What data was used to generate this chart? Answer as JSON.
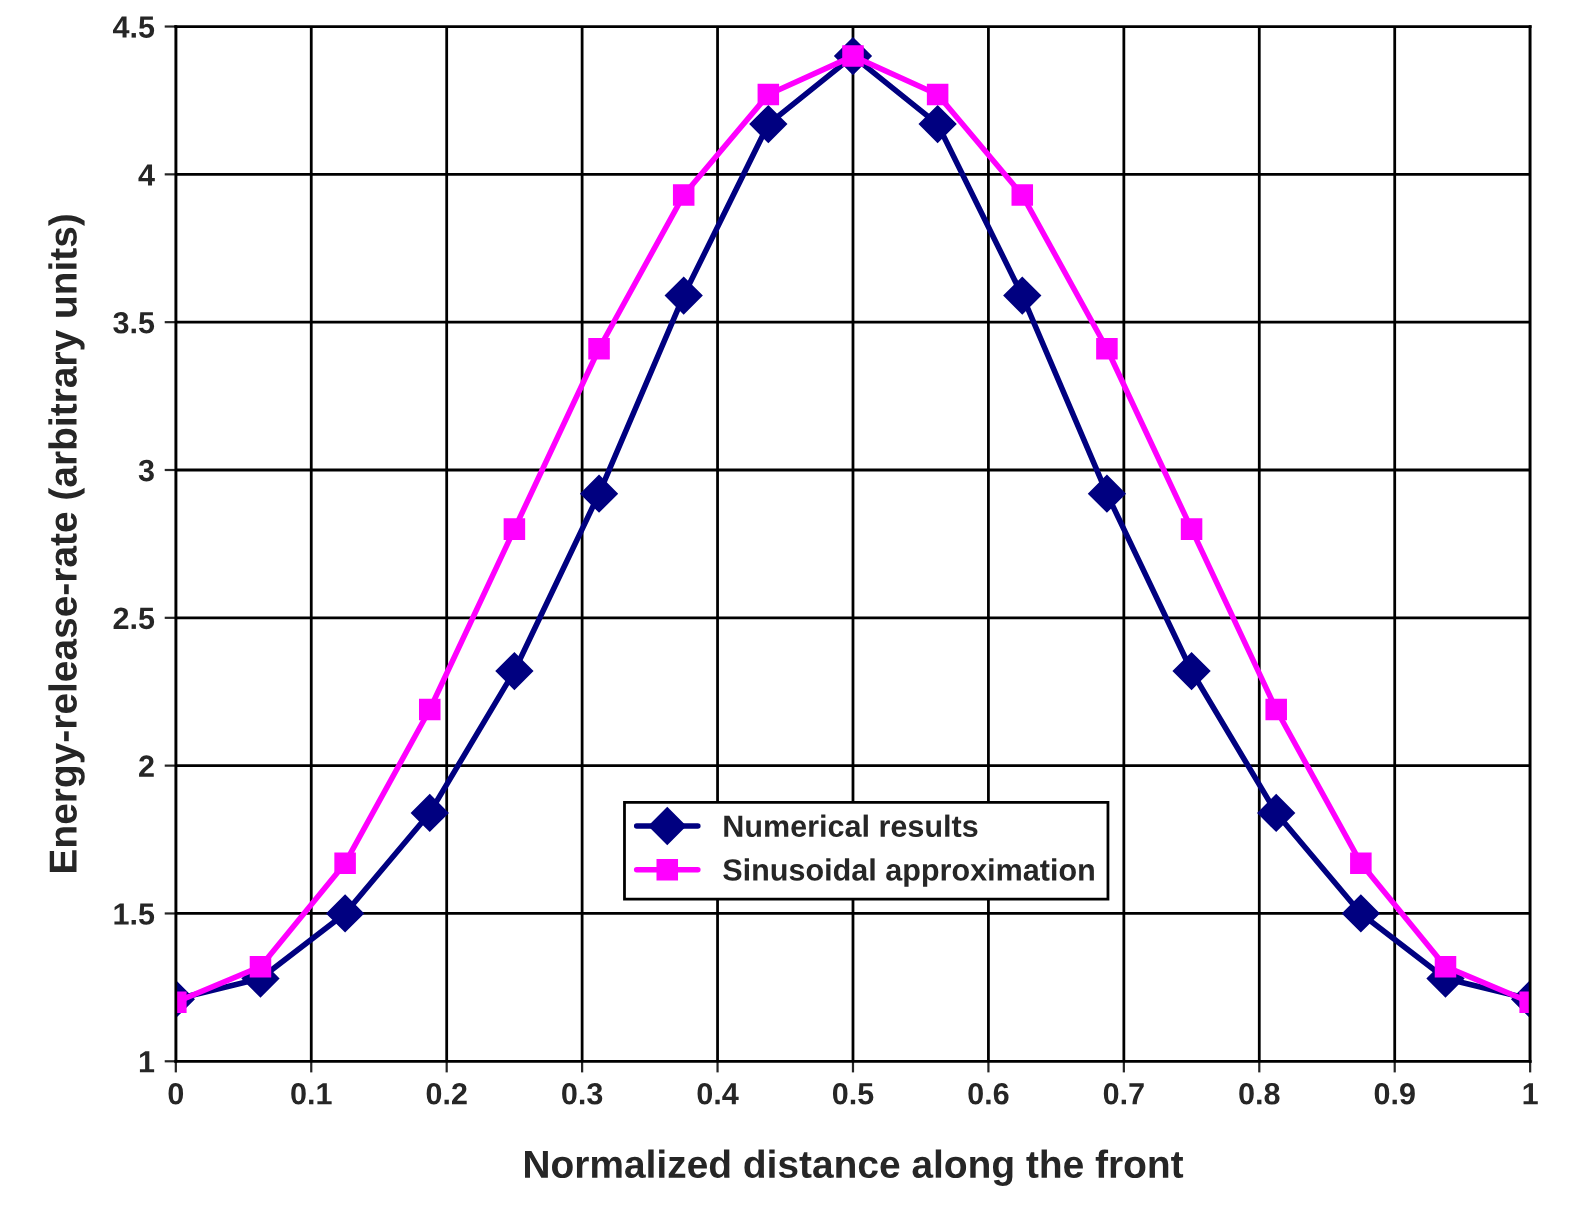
{
  "chart_data": {
    "type": "line",
    "xlabel": "Normalized distance along the front",
    "ylabel": "Energy-release-rate (arbitrary units)",
    "x": [
      0,
      0.0625,
      0.125,
      0.1875,
      0.25,
      0.3125,
      0.375,
      0.4375,
      0.5,
      0.5625,
      0.625,
      0.6875,
      0.75,
      0.8125,
      0.875,
      0.9375,
      1
    ],
    "series": [
      {
        "name": "Numerical results",
        "color": "#000080",
        "marker": "diamond",
        "values": [
          1.21,
          1.28,
          1.5,
          1.84,
          2.32,
          2.92,
          3.59,
          4.17,
          4.4,
          4.17,
          3.59,
          2.92,
          2.32,
          1.84,
          1.5,
          1.28,
          1.21
        ]
      },
      {
        "name": "Sinusoidal approximation",
        "color": "#ff00ff",
        "marker": "square",
        "values": [
          1.2,
          1.32,
          1.67,
          2.19,
          2.8,
          3.41,
          3.93,
          4.27,
          4.4,
          4.27,
          3.93,
          3.41,
          2.8,
          2.19,
          1.67,
          1.32,
          1.2
        ]
      }
    ],
    "xlim": [
      0,
      1
    ],
    "xticks": [
      0,
      0.1,
      0.2,
      0.3,
      0.4,
      0.5,
      0.6,
      0.7,
      0.8,
      0.9,
      1
    ],
    "ylim": [
      1,
      4.5
    ],
    "yticks": [
      1,
      1.5,
      2,
      2.5,
      3,
      3.5,
      4,
      4.5
    ],
    "grid": true,
    "legend": "bottom",
    "line_style": "solid"
  }
}
